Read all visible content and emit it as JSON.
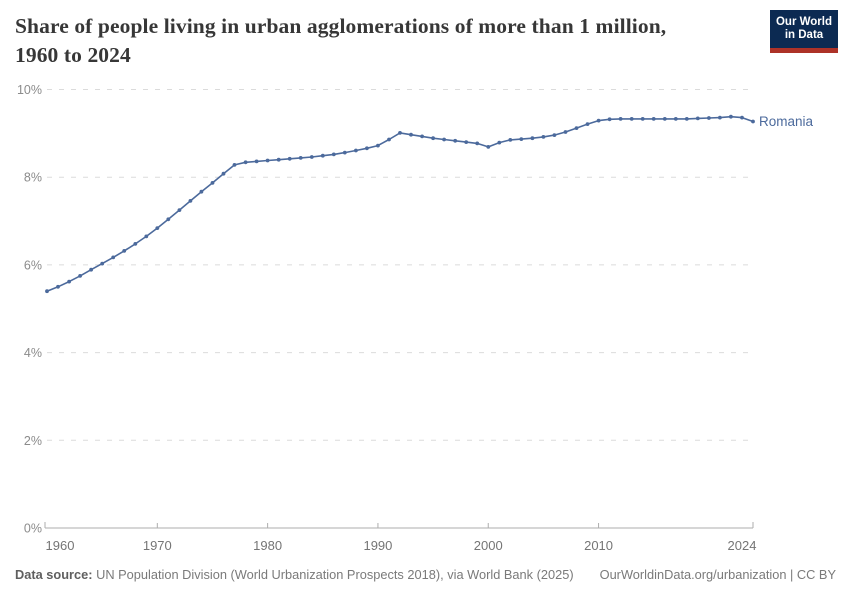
{
  "header": {
    "title_line1": "Share of people living in urban agglomerations of more than 1 million,",
    "title_line2": "1960 to 2024",
    "logo": {
      "line1": "Our World",
      "line2": "in Data",
      "bg_color": "#0c2a52",
      "accent_color": "#ad3228"
    }
  },
  "chart_data": {
    "type": "line",
    "title": "Share of people living in urban agglomerations of more than 1 million, 1960 to 2024",
    "xlabel": "",
    "ylabel": "",
    "xlim": [
      1960,
      2024
    ],
    "ylim": [
      0,
      10
    ],
    "grid": "horizontal-dashed",
    "legend_position": "end-of-line-label",
    "x_ticks": [
      {
        "year": 1960,
        "label": "1960"
      },
      {
        "year": 1970,
        "label": "1970"
      },
      {
        "year": 1980,
        "label": "1980"
      },
      {
        "year": 1990,
        "label": "1990"
      },
      {
        "year": 2000,
        "label": "2000"
      },
      {
        "year": 2010,
        "label": "2010"
      },
      {
        "year": 2024,
        "label": "2024"
      }
    ],
    "y_ticks": [
      {
        "value": 0,
        "label": "0%"
      },
      {
        "value": 2,
        "label": "2%"
      },
      {
        "value": 4,
        "label": "4%"
      },
      {
        "value": 6,
        "label": "6%"
      },
      {
        "value": 8,
        "label": "8%"
      },
      {
        "value": 10,
        "label": "10%"
      }
    ],
    "colors": {
      "line": "#4C6A9C",
      "grid": "#DBDBDB",
      "axis": "#ADADAD",
      "tick_label": "#8B8B8B"
    },
    "series": [
      {
        "name": "Romania",
        "color": "#4C6A9C",
        "years": [
          1960,
          1961,
          1962,
          1963,
          1964,
          1965,
          1966,
          1967,
          1968,
          1969,
          1970,
          1971,
          1972,
          1973,
          1974,
          1975,
          1976,
          1977,
          1978,
          1979,
          1980,
          1981,
          1982,
          1983,
          1984,
          1985,
          1986,
          1987,
          1988,
          1989,
          1990,
          1991,
          1992,
          1993,
          1994,
          1995,
          1996,
          1997,
          1998,
          1999,
          2000,
          2001,
          2002,
          2003,
          2004,
          2005,
          2006,
          2007,
          2008,
          2009,
          2010,
          2011,
          2012,
          2013,
          2014,
          2015,
          2016,
          2017,
          2018,
          2019,
          2020,
          2021,
          2022,
          2023,
          2024
        ],
        "values": [
          5.4,
          5.5,
          5.62,
          5.75,
          5.89,
          6.03,
          6.17,
          6.32,
          6.48,
          6.65,
          6.84,
          7.04,
          7.25,
          7.46,
          7.67,
          7.87,
          8.08,
          8.28,
          8.34,
          8.36,
          8.38,
          8.4,
          8.42,
          8.44,
          8.46,
          8.49,
          8.52,
          8.56,
          8.61,
          8.66,
          8.72,
          8.86,
          9.01,
          8.97,
          8.93,
          8.89,
          8.86,
          8.83,
          8.8,
          8.77,
          8.69,
          8.79,
          8.85,
          8.87,
          8.89,
          8.92,
          8.96,
          9.03,
          9.12,
          9.21,
          9.29,
          9.32,
          9.33,
          9.33,
          9.33,
          9.33,
          9.33,
          9.33,
          9.33,
          9.34,
          9.35,
          9.36,
          9.38,
          9.36,
          9.27
        ]
      }
    ]
  },
  "footer": {
    "datasource_label": "Data source:",
    "datasource_text": "UN Population Division (World Urbanization Prospects 2018), via World Bank (2025)",
    "link_text": "OurWorldinData.org/urbanization | CC BY"
  }
}
